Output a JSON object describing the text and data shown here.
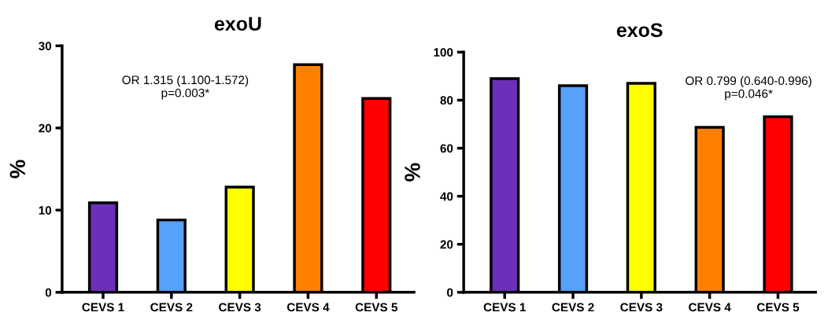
{
  "chart_data": [
    {
      "type": "bar",
      "title": "exoU",
      "ylabel": "%",
      "categories": [
        "CEVS 1",
        "CEVS 2",
        "CEVS 3",
        "CEVS 4",
        "CEVS 5"
      ],
      "values": [
        10.9,
        8.8,
        12.8,
        27.7,
        23.6
      ],
      "colors": [
        "#6d2fb9",
        "#57a0fc",
        "#ffff00",
        "#ff8000",
        "#ff0000"
      ],
      "ylim": [
        0,
        30
      ],
      "yticks": [
        0,
        10,
        20,
        30
      ],
      "grid": false,
      "annotations": [
        "OR 1.315 (1.100-1.572)\np=0.003*"
      ]
    },
    {
      "type": "bar",
      "title": "exoS",
      "ylabel": "%",
      "categories": [
        "CEVS 1",
        "CEVS 2",
        "CEVS 3",
        "CEVS 4",
        "CEVS 5"
      ],
      "values": [
        89,
        86,
        87,
        68.7,
        73.1
      ],
      "colors": [
        "#6d2fb9",
        "#57a0fc",
        "#ffff00",
        "#ff8000",
        "#ff0000"
      ],
      "ylim": [
        0,
        100
      ],
      "yticks": [
        0,
        20,
        40,
        60,
        80,
        100
      ],
      "grid": false,
      "annotations": [
        "OR 0.799 (0.640-0.996)\np=0.046*"
      ]
    }
  ]
}
